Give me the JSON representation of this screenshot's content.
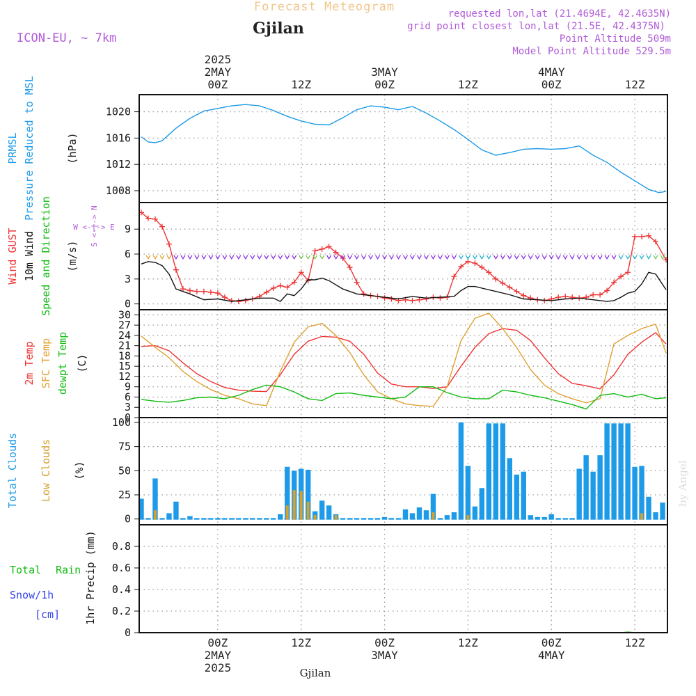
{
  "header": {
    "title": "Forecast Meteogram",
    "location": "Gjilan",
    "model": "ICON-EU, ~ 7km",
    "requested": "requested lon,lat (21.4694E, 42.4635N)",
    "grid_point": "grid point closest lon,lat (21.5E, 42.4375N)",
    "point_altitude": "Point Altitude 509m",
    "model_altitude": "Model Point Altitude 529.5m",
    "credit": "by Angel",
    "footer_location": "Gjilan"
  },
  "time_axis": {
    "top_labels": [
      {
        "hour": 0,
        "lines": [
          "2025",
          "2MAY",
          "00Z"
        ]
      },
      {
        "hour": 12,
        "lines": [
          "12Z"
        ]
      },
      {
        "hour": 24,
        "lines": [
          "3MAY",
          "00Z"
        ]
      },
      {
        "hour": 36,
        "lines": [
          "12Z"
        ]
      },
      {
        "hour": 48,
        "lines": [
          "4MAY",
          "00Z"
        ]
      },
      {
        "hour": 60,
        "lines": [
          "12Z"
        ]
      }
    ],
    "bottom_labels": [
      {
        "hour": 0,
        "lines": [
          "00Z",
          "2MAY",
          "2025"
        ]
      },
      {
        "hour": 12,
        "lines": [
          "12Z"
        ]
      },
      {
        "hour": 24,
        "lines": [
          "00Z",
          "3MAY"
        ]
      },
      {
        "hour": 36,
        "lines": [
          "12Z"
        ]
      },
      {
        "hour": 48,
        "lines": [
          "00Z",
          "4MAY"
        ]
      },
      {
        "hour": 60,
        "lines": [
          "12Z"
        ]
      }
    ],
    "xlim": [
      -11.3,
      64.7
    ]
  },
  "colors": {
    "pressure": "#1e9be8",
    "gust": "#ee3333",
    "wind": "#111111",
    "wind_label": "#11bb11",
    "temp2m": "#ee3333",
    "sfc": "#e0a030",
    "dewpt": "#11bb11",
    "clouds_total": "#1e9be8",
    "clouds_low": "#d4a030",
    "rain": "#11bb11",
    "snow": "#3344ee",
    "meta": "#b05ad8",
    "title": "#f2c58a"
  },
  "chart_data": [
    {
      "type": "line",
      "panel": "pressure",
      "ylabel_lines": [
        {
          "text": "PRMSL",
          "color": "pressure"
        },
        {
          "text": "Pressure Reduced to MSL",
          "color": "pressure"
        },
        {
          "text": "(hPa)",
          "color": "black"
        }
      ],
      "ylim": [
        1006.2,
        1022.6
      ],
      "yticks": [
        1008,
        1012,
        1016,
        1020
      ],
      "series": [
        {
          "key": "pressure",
          "x": [
            -11,
            -10,
            -9,
            -8,
            -6,
            -4,
            -2,
            0,
            2,
            4,
            6,
            8,
            10,
            12,
            14,
            16,
            18,
            20,
            22,
            24,
            26,
            28,
            30,
            32,
            34,
            36,
            38,
            40,
            42,
            44,
            46,
            48,
            50,
            52,
            54,
            56,
            58,
            60,
            62,
            63.5,
            64.5
          ],
          "y": [
            1016.2,
            1015.4,
            1015.3,
            1015.6,
            1017.5,
            1019.0,
            1020.1,
            1020.5,
            1020.9,
            1021.1,
            1020.9,
            1020.2,
            1019.3,
            1018.6,
            1018.1,
            1018.0,
            1019.1,
            1020.3,
            1020.9,
            1020.7,
            1020.3,
            1020.8,
            1019.8,
            1018.6,
            1017.3,
            1015.8,
            1014.2,
            1013.4,
            1013.8,
            1014.3,
            1014.4,
            1014.3,
            1014.4,
            1014.8,
            1013.4,
            1012.3,
            1010.8,
            1009.5,
            1008.2,
            1007.7,
            1007.9
          ]
        }
      ]
    },
    {
      "type": "line",
      "panel": "wind",
      "ylabel_lines": [
        {
          "text": "Wind GUST",
          "color": "gust"
        },
        {
          "text": "10m Wind",
          "color": "black"
        },
        {
          "text": "Speed and Direction",
          "color": "wind_label"
        },
        {
          "text": "(m/s)",
          "color": "black"
        }
      ],
      "compass": [
        "N",
        "W",
        "E",
        "S"
      ],
      "ylim": [
        -0.7,
        12.2
      ],
      "yticks": [
        0,
        3,
        6,
        9
      ],
      "series": [
        {
          "key": "gust",
          "x": [
            -11,
            -10,
            -9,
            -8,
            -7,
            -6,
            -5,
            -4,
            -3,
            -2,
            -1,
            0,
            1,
            2,
            3,
            4,
            5,
            6,
            7,
            8,
            9,
            10,
            11,
            12,
            13,
            14,
            15,
            16,
            17,
            18,
            19,
            20,
            21,
            22,
            23,
            24,
            25,
            26,
            27,
            28,
            29,
            30,
            31,
            32,
            33,
            34,
            35,
            36,
            37,
            38,
            39,
            40,
            41,
            42,
            43,
            44,
            45,
            46,
            47,
            48,
            49,
            50,
            51,
            52,
            53,
            54,
            55,
            56,
            57,
            58,
            59,
            60,
            61,
            62,
            63,
            64.5
          ],
          "y": [
            11.0,
            10.3,
            10.2,
            9.3,
            7.2,
            4.1,
            1.8,
            1.6,
            1.5,
            1.5,
            1.4,
            1.3,
            0.8,
            0.4,
            0.3,
            0.4,
            0.6,
            0.9,
            1.4,
            1.9,
            2.2,
            2.0,
            2.6,
            3.8,
            2.8,
            6.4,
            6.6,
            6.9,
            6.2,
            5.5,
            4.4,
            2.6,
            1.2,
            1.0,
            0.9,
            0.7,
            0.6,
            0.4,
            0.5,
            0.4,
            0.5,
            0.6,
            0.8,
            0.7,
            0.8,
            3.3,
            4.5,
            5.1,
            4.9,
            4.4,
            3.8,
            3.0,
            2.5,
            2.0,
            1.5,
            1.0,
            0.7,
            0.5,
            0.4,
            0.6,
            0.8,
            0.9,
            0.8,
            0.7,
            0.8,
            1.1,
            1.1,
            1.6,
            2.6,
            3.3,
            3.8,
            8.1,
            8.1,
            8.2,
            7.5,
            5.3
          ]
        },
        {
          "key": "wind",
          "x": [
            -11,
            -10,
            -9,
            -8,
            -7,
            -6,
            -4,
            -2,
            0,
            2,
            4,
            6,
            8,
            9,
            10,
            11,
            12,
            13,
            14,
            15,
            16,
            18,
            20,
            22,
            24,
            26,
            28,
            30,
            32,
            34,
            35,
            36,
            37,
            38,
            40,
            42,
            44,
            46,
            48,
            50,
            52,
            54,
            56,
            57,
            58,
            59,
            60,
            61,
            62,
            63,
            64.5
          ],
          "y": [
            4.8,
            5.1,
            5.0,
            4.6,
            3.6,
            1.8,
            1.2,
            0.5,
            0.6,
            0.3,
            0.5,
            0.7,
            0.7,
            0.3,
            1.2,
            1.0,
            1.8,
            2.9,
            2.9,
            3.1,
            2.8,
            1.8,
            1.2,
            1.0,
            0.8,
            0.6,
            0.9,
            0.7,
            0.8,
            0.9,
            1.6,
            2.1,
            2.1,
            1.9,
            1.5,
            1.1,
            0.6,
            0.5,
            0.4,
            0.6,
            0.7,
            0.5,
            0.3,
            0.4,
            0.8,
            1.3,
            1.5,
            2.4,
            3.8,
            3.6,
            1.7
          ]
        }
      ]
    },
    {
      "type": "line",
      "panel": "temperature",
      "ylabel_lines": [
        {
          "text": "2m Temp",
          "color": "temp2m"
        },
        {
          "text": "SFC Temp",
          "color": "sfc"
        },
        {
          "text": "dewpt Temp",
          "color": "dewpt"
        },
        {
          "text": "(C)",
          "color": "black"
        }
      ],
      "ylim": [
        0,
        31.5
      ],
      "yticks": [
        0,
        3,
        6,
        9,
        12,
        15,
        18,
        21,
        24,
        27,
        30
      ],
      "series": [
        {
          "key": "temp2m",
          "x": [
            -11,
            -9,
            -7,
            -5,
            -3,
            -1,
            1,
            3,
            5,
            7,
            9,
            11,
            13,
            15,
            17,
            19,
            21,
            23,
            25,
            27,
            29,
            31,
            33,
            35,
            37,
            39,
            41,
            43,
            45,
            47,
            49,
            51,
            53,
            55,
            57,
            59,
            61,
            63,
            64.5
          ],
          "y": [
            20.8,
            21.0,
            19.5,
            16.0,
            12.8,
            10.5,
            8.8,
            8.0,
            7.7,
            7.6,
            12.5,
            18.5,
            22.3,
            23.7,
            23.5,
            22.3,
            18.5,
            13.0,
            9.8,
            9.0,
            9.0,
            8.5,
            9.0,
            15.0,
            20.5,
            24.5,
            26.0,
            25.5,
            22.5,
            17.5,
            12.8,
            10.0,
            9.3,
            8.4,
            12.5,
            18.5,
            22.0,
            24.8,
            21.5
          ]
        },
        {
          "key": "sfc",
          "x": [
            -11,
            -9,
            -7,
            -5,
            -3,
            -1,
            1,
            3,
            5,
            7,
            9,
            11,
            13,
            15,
            17,
            19,
            21,
            23,
            25,
            27,
            29,
            31,
            33,
            35,
            37,
            39,
            41,
            43,
            45,
            47,
            49,
            51,
            53,
            55,
            57,
            59,
            61,
            63,
            64.5
          ],
          "y": [
            23.8,
            20.5,
            17.5,
            13.5,
            10.5,
            8.2,
            6.5,
            5.5,
            4.0,
            3.5,
            13.5,
            22.0,
            26.5,
            27.5,
            24.0,
            19.0,
            12.5,
            7.5,
            5.5,
            4.0,
            3.5,
            3.3,
            9.0,
            22.5,
            29.0,
            30.5,
            26.0,
            20.5,
            14.0,
            9.5,
            7.0,
            5.5,
            4.3,
            5.5,
            21.5,
            24.0,
            26.0,
            27.3,
            18.8
          ]
        },
        {
          "key": "dewpt",
          "x": [
            -11,
            -9,
            -7,
            -5,
            -3,
            -1,
            1,
            3,
            5,
            7,
            9,
            11,
            13,
            15,
            17,
            19,
            21,
            23,
            25,
            27,
            29,
            31,
            33,
            35,
            37,
            39,
            41,
            43,
            45,
            47,
            49,
            51,
            53,
            55,
            57,
            59,
            61,
            63,
            64.5
          ],
          "y": [
            5.3,
            4.8,
            4.5,
            5.0,
            5.8,
            6.0,
            5.5,
            6.5,
            8.2,
            9.5,
            9.0,
            7.5,
            5.5,
            5.0,
            7.0,
            7.2,
            6.5,
            6.0,
            5.5,
            6.0,
            9.0,
            9.0,
            7.3,
            6.0,
            5.5,
            5.5,
            8.0,
            7.5,
            6.5,
            5.8,
            4.8,
            3.8,
            2.5,
            6.5,
            7.0,
            6.0,
            6.8,
            5.5,
            5.8
          ]
        }
      ]
    },
    {
      "type": "bar",
      "panel": "clouds",
      "ylabel_lines": [
        {
          "text": "Total Clouds",
          "color": "clouds_total"
        },
        {
          "text": "Low Clouds",
          "color": "clouds_low"
        },
        {
          "text": "(%)",
          "color": "black"
        }
      ],
      "ylim": [
        -6,
        105
      ],
      "yticks": [
        0,
        25,
        50,
        75,
        100
      ],
      "x": [
        -11,
        -10,
        -9,
        -8,
        -7,
        -6,
        -5,
        -4,
        -3,
        -2,
        -1,
        0,
        1,
        2,
        3,
        4,
        5,
        6,
        7,
        8,
        9,
        10,
        11,
        12,
        13,
        14,
        15,
        16,
        17,
        18,
        19,
        20,
        21,
        22,
        23,
        24,
        25,
        26,
        27,
        28,
        29,
        30,
        31,
        32,
        33,
        34,
        35,
        36,
        37,
        38,
        39,
        40,
        41,
        42,
        43,
        44,
        45,
        46,
        47,
        48,
        49,
        50,
        51,
        52,
        53,
        54,
        55,
        56,
        57,
        58,
        59,
        60,
        61,
        62,
        63,
        64,
        65
      ],
      "series": [
        {
          "key": "clouds_total",
          "values": [
            21,
            1,
            42,
            1,
            6,
            18,
            1,
            3,
            1,
            1,
            1,
            1,
            1,
            1,
            1,
            1,
            1,
            1,
            1,
            1,
            5,
            54,
            50,
            52,
            51,
            8,
            19,
            14,
            5,
            1,
            1,
            1,
            1,
            1,
            1,
            2,
            1,
            1,
            10,
            6,
            12,
            9,
            26,
            1,
            4,
            7,
            100,
            55,
            13,
            32,
            99,
            99,
            99,
            63,
            46,
            49,
            4,
            2,
            2,
            5,
            1,
            1,
            1,
            52,
            66,
            49,
            66,
            99,
            99,
            99,
            99,
            54,
            55,
            23,
            7,
            17,
            1
          ],
          "low": [
            0,
            0,
            9,
            0,
            0,
            0,
            0,
            0,
            0,
            0,
            0,
            0,
            0,
            0,
            0,
            0,
            0,
            0,
            0,
            0,
            0,
            14,
            30,
            29,
            18,
            4,
            0,
            0,
            4,
            0,
            0,
            0,
            0,
            0,
            0,
            0,
            0,
            0,
            0,
            0,
            0,
            0,
            7,
            0,
            0,
            0,
            0,
            4,
            0,
            0,
            0,
            0,
            0,
            0,
            0,
            0,
            0,
            0,
            0,
            0,
            0,
            0,
            0,
            0,
            0,
            0,
            0,
            0,
            0,
            0,
            0,
            0,
            6,
            0,
            0,
            0,
            0
          ]
        }
      ]
    },
    {
      "type": "line",
      "panel": "precip",
      "ylabel_lines": [
        {
          "text": "Total",
          "color": "rain"
        },
        {
          "text": "Rain",
          "color": "rain"
        },
        {
          "text": "Snow/1h",
          "color": "snow"
        },
        {
          "text": "[cm]",
          "color": "snow"
        },
        {
          "text": "1hr Precip (mm)",
          "color": "black"
        }
      ],
      "ylim": [
        0,
        1.0
      ],
      "yticks": [
        0,
        0.2,
        0.4,
        0.6,
        0.8
      ],
      "ytick_labels": [
        "0",
        "0.2",
        "0.4",
        "0.6",
        "0.8"
      ],
      "series": [
        {
          "key": "rain",
          "x": [
            -11,
            58,
            59,
            60,
            64.5
          ],
          "y": [
            0,
            0,
            0.006,
            0,
            0
          ]
        }
      ]
    }
  ]
}
